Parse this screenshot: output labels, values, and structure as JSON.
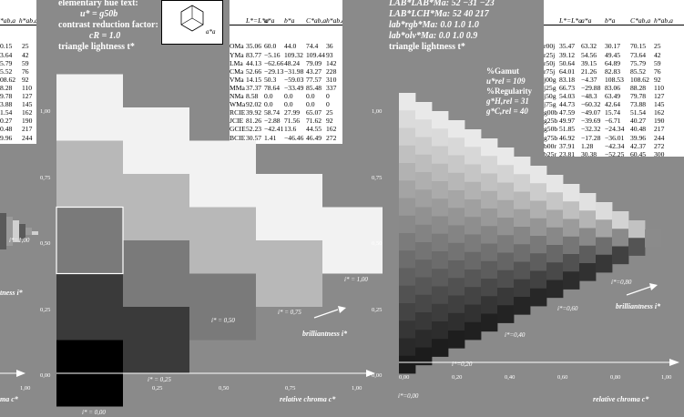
{
  "left_panel": {
    "header_lines": [
      "elementary hue text:",
      "u* = g50b",
      "contrast reduction factor:",
      "cR = 1.0",
      "triangle lightness t*"
    ],
    "axis_y_ticks": [
      "1,00",
      "0,75",
      "0,50",
      "0,25",
      "0,00"
    ],
    "axis_x_ticks": [
      "0,25",
      "0,50",
      "0,75",
      "1,00"
    ],
    "x_label": "relative chroma c*",
    "x_label_left_fragment": "ma c*",
    "iso_labels": [
      "i* = 0,00",
      "i* = 0,25",
      "i* = 0,50",
      "i* = 0,75",
      "i* = 1,00"
    ],
    "brilliantness_label": "brilliantness i*",
    "left_fragment_label": "tness i*",
    "left_fragment_iso": "i*=1,00",
    "left_fragment_tick": "1,00",
    "left_table_top_fragment": "*ab,a  h*ab,a",
    "left_table_values": [
      [
        "0.15",
        "25"
      ],
      [
        "3.64",
        "42"
      ],
      [
        "5.79",
        "59"
      ],
      [
        "5.52",
        "76"
      ],
      [
        "08.62",
        "92"
      ],
      [
        "8.28",
        "110"
      ],
      [
        "9.78",
        "127"
      ],
      [
        "3.88",
        "145"
      ],
      [
        "1.54",
        "162"
      ],
      [
        "0.27",
        "190"
      ],
      [
        "0.48",
        "217"
      ],
      [
        "9.96",
        "244"
      ],
      [
        "2.37",
        "272"
      ],
      [
        "0.45",
        "300"
      ],
      [
        "0.9",
        "329"
      ],
      [
        "1.57",
        "357"
      ]
    ]
  },
  "center_table": {
    "columns": [
      "L*=L*a",
      "a*a",
      "b*a",
      "C*ab,a",
      "h*ab,a"
    ],
    "rows": [
      [
        "OMa",
        "35.06",
        "60.0",
        "44.0",
        "74.4",
        "36"
      ],
      [
        "YMa",
        "83.77",
        "−5.16",
        "109.32",
        "109.44",
        "93"
      ],
      [
        "LMa",
        "44.13",
        "−62.66",
        "48.24",
        "79.09",
        "142"
      ],
      [
        "CMa",
        "52.66",
        "−29.13",
        "−31.98",
        "43.27",
        "228"
      ],
      [
        "VMa",
        "14.15",
        "50.3",
        "−59.03",
        "77.57",
        "310"
      ],
      [
        "MMa",
        "37.37",
        "78.64",
        "−33.49",
        "85.48",
        "337"
      ],
      [
        "NMa",
        "8.58",
        "0.0",
        "0.0",
        "0.0",
        "0"
      ],
      [
        "WMa",
        "92.02",
        "0.0",
        "0.0",
        "0.0",
        "0"
      ],
      [
        "RCIE",
        "39.92",
        "58.74",
        "27.99",
        "65.07",
        "25"
      ],
      [
        "JCIE",
        "81.26",
        "−2.88",
        "71.56",
        "71.62",
        "92"
      ],
      [
        "GCIE",
        "52.23",
        "−42.41",
        "13.6",
        "44.55",
        "162"
      ],
      [
        "BCIE",
        "30.57",
        "1.41",
        "−46.46",
        "46.49",
        "272"
      ]
    ],
    "hexagon_label": "a*a"
  },
  "right_panel": {
    "header_lines": [
      "LAB*LAB*Ma: 52 −31 −23",
      "LAB*LCH*Ma: 52 40 217",
      "lab*rgb*Ma: 0.0 1.0 1.0",
      "lab*olv*Ma: 0.0 1.0 0.9",
      "triangle lightness t*"
    ],
    "gamut_lines": [
      "%Gamut",
      "u*rel = 109",
      "%Regularity",
      "g*H,rel = 31",
      "g*C,rel = 40"
    ],
    "axis_y_ticks": [
      "1,00",
      "0,75",
      "0,50",
      "0,25",
      "0,00"
    ],
    "axis_x_ticks": [
      "0,00",
      "0,20",
      "0,40",
      "0,60",
      "0,80",
      "1,00"
    ],
    "x_label": "relative chroma c*",
    "iso_labels": [
      "i*=0,00",
      "i*=0,20",
      "i*=0,40",
      "i*=0,60",
      "i*=0,80"
    ],
    "brilliantness_label": "brilliantness i*",
    "columns": [
      "L*=L*a",
      "a*a",
      "b*a",
      "C*ab,a",
      "h*ab,a"
    ],
    "rows": [
      [
        "r00j",
        "35.47",
        "63.32",
        "30.17",
        "70.15",
        "25"
      ],
      [
        "r25j",
        "39.12",
        "54.56",
        "49.45",
        "73.64",
        "42"
      ],
      [
        "r50j",
        "50.64",
        "39.15",
        "64.89",
        "75.79",
        "59"
      ],
      [
        "r75j",
        "64.01",
        "21.26",
        "82.83",
        "85.52",
        "76"
      ],
      [
        "j00g",
        "83.18",
        "−4.37",
        "108.53",
        "108.62",
        "92"
      ],
      [
        "j25g",
        "66.73",
        "−29.88",
        "83.06",
        "88.28",
        "110"
      ],
      [
        "j50g",
        "54.03",
        "−48.3",
        "63.49",
        "79.78",
        "127"
      ],
      [
        "j75g",
        "44.73",
        "−60.32",
        "42.64",
        "73.88",
        "145"
      ],
      [
        "g00b",
        "47.59",
        "−49.07",
        "15.74",
        "51.54",
        "162"
      ],
      [
        "g25b",
        "49.97",
        "−39.69",
        "−6.71",
        "40.27",
        "190"
      ],
      [
        "g50b",
        "51.85",
        "−32.32",
        "−24.34",
        "40.48",
        "217"
      ],
      [
        "g75b",
        "46.92",
        "−17.28",
        "−36.01",
        "39.96",
        "244"
      ],
      [
        "b00r",
        "37.91",
        "1.28",
        "−42.34",
        "42.37",
        "272"
      ],
      [
        "b25r",
        "23.81",
        "30.38",
        "−52.25",
        "60.45",
        "300"
      ],
      [
        "b50r",
        "29.52",
        "69.06",
        "−42.13",
        "80.9",
        "329"
      ],
      [
        "b75r",
        "36.48",
        "71.47",
        "−3.68",
        "71.57",
        "357"
      ]
    ]
  },
  "chart_data": [
    {
      "type": "heatmap",
      "x_axis_label": "relative chroma c*",
      "y_axis_label": "triangle lightness t*",
      "x_ticks": [
        0.25,
        0.5,
        0.75,
        1.0
      ],
      "y_ticks": [
        0.0,
        0.25,
        0.5,
        0.75,
        1.0
      ],
      "columns": [
        {
          "c": 0.0,
          "cells": [
            {
              "t": 0.0,
              "gray": "#000000"
            },
            {
              "t": 0.25,
              "gray": "#3a3a3a"
            },
            {
              "t": 0.5,
              "gray": "#7a7a7a"
            },
            {
              "t": 0.75,
              "gray": "#b8b8b8"
            },
            {
              "t": 1.0,
              "gray": "#f2f2f2"
            }
          ]
        },
        {
          "c": 0.25,
          "cells": [
            {
              "t": 0.125,
              "gray": "#3a3a3a"
            },
            {
              "t": 0.375,
              "gray": "#7a7a7a"
            },
            {
              "t": 0.625,
              "gray": "#b8b8b8"
            },
            {
              "t": 0.875,
              "gray": "#f2f2f2"
            }
          ]
        },
        {
          "c": 0.5,
          "cells": [
            {
              "t": 0.25,
              "gray": "#7a7a7a"
            },
            {
              "t": 0.5,
              "gray": "#b8b8b8"
            },
            {
              "t": 0.75,
              "gray": "#f2f2f2"
            }
          ]
        },
        {
          "c": 0.75,
          "cells": [
            {
              "t": 0.375,
              "gray": "#b8b8b8"
            },
            {
              "t": 0.625,
              "gray": "#f2f2f2"
            }
          ]
        },
        {
          "c": 1.0,
          "cells": [
            {
              "t": 0.5,
              "gray": "#f2f2f2"
            }
          ]
        }
      ]
    },
    {
      "type": "heatmap",
      "x_axis_label": "relative chroma c*",
      "y_axis_label": "triangle lightness t*",
      "x_ticks": [
        0.0,
        0.2,
        0.4,
        0.6,
        0.8,
        1.0
      ],
      "y_ticks": [
        0.0,
        0.25,
        0.5,
        0.75,
        1.0
      ],
      "steps": 16
    }
  ]
}
